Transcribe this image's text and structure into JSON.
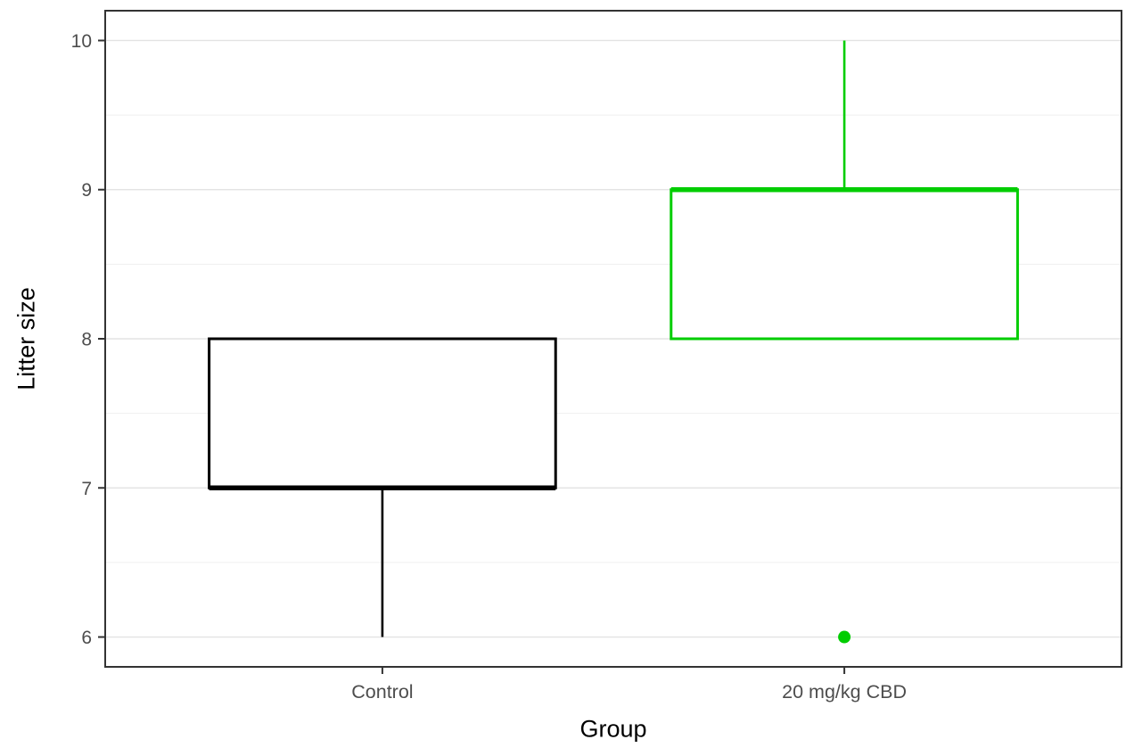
{
  "figure": {
    "background": "#FFFFFF",
    "panel_background": "#FFFFFF",
    "panel_border_color": "#333333",
    "grid_major_color": "#E3E3E3",
    "grid_minor_color": "#EFEFEF",
    "tick_color": "#333333",
    "tick_label_color": "#4D4D4D",
    "axis_title_color": "#000000"
  },
  "chart_data": {
    "type": "boxplot",
    "title": "",
    "xlabel": "Group",
    "ylabel": "Litter size",
    "categories": [
      "Control",
      "20 mg/kg CBD"
    ],
    "y_ticks": [
      6,
      7,
      8,
      9,
      10
    ],
    "ylim": [
      5.8,
      10.2
    ],
    "grid": true,
    "legend": false,
    "series": [
      {
        "name": "Control",
        "color": "#000000",
        "whisker_low": 6,
        "q1": 7,
        "median": 7,
        "q3": 8,
        "whisker_high": 8,
        "outliers": []
      },
      {
        "name": "20 mg/kg CBD",
        "color": "#00CD00",
        "whisker_low": 8,
        "q1": 8,
        "median": 9,
        "q3": 9,
        "whisker_high": 10,
        "outliers": [
          6
        ]
      }
    ]
  }
}
